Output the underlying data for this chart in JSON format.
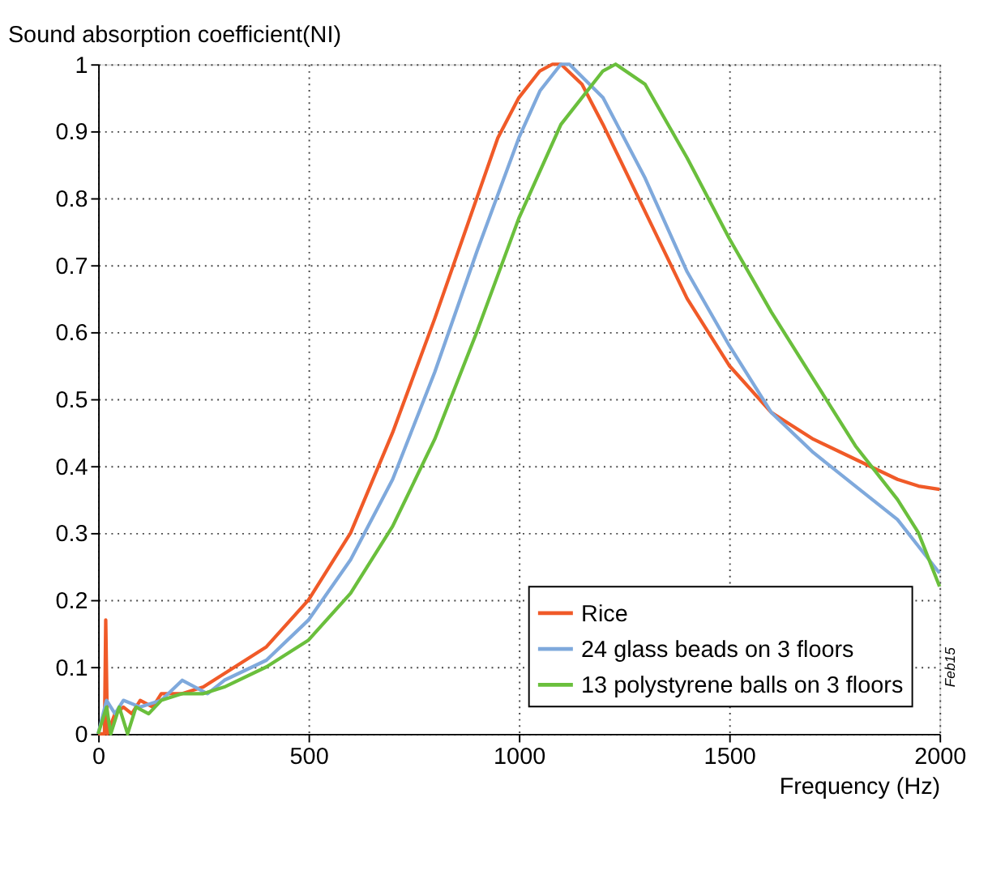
{
  "chart_data": {
    "type": "line",
    "title": "Sound absorption coefficient(NI)",
    "xlabel": "Frequency (Hz)",
    "xlim": [
      0,
      2000
    ],
    "xticks": [
      0,
      500,
      1000,
      1500,
      2000
    ],
    "ylim": [
      0,
      1
    ],
    "yticks": [
      0,
      0.1,
      0.2,
      0.3,
      0.4,
      0.5,
      0.6,
      0.7,
      0.8,
      0.9,
      1
    ],
    "grid": true,
    "legend": "bottom right",
    "annotations": [
      "Feb15"
    ],
    "series": [
      {
        "name": "Rice",
        "color": "#f05a28",
        "x": [
          0,
          15,
          18,
          22,
          40,
          60,
          80,
          100,
          130,
          150,
          200,
          250,
          300,
          400,
          500,
          600,
          700,
          800,
          900,
          950,
          1000,
          1050,
          1080,
          1100,
          1150,
          1200,
          1300,
          1400,
          1500,
          1600,
          1700,
          1800,
          1900,
          1950,
          2000
        ],
        "values": [
          0,
          0,
          0.17,
          0,
          0.03,
          0.04,
          0.03,
          0.05,
          0.04,
          0.06,
          0.06,
          0.07,
          0.09,
          0.13,
          0.2,
          0.3,
          0.45,
          0.62,
          0.8,
          0.89,
          0.95,
          0.99,
          1.0,
          1.0,
          0.97,
          0.91,
          0.78,
          0.65,
          0.55,
          0.48,
          0.44,
          0.41,
          0.38,
          0.37,
          0.365
        ]
      },
      {
        "name": "24 glass beads on 3 floors",
        "color": "#7fa9dc",
        "x": [
          0,
          20,
          40,
          60,
          100,
          150,
          200,
          230,
          260,
          300,
          400,
          500,
          600,
          700,
          800,
          900,
          1000,
          1050,
          1100,
          1120,
          1200,
          1300,
          1400,
          1500,
          1600,
          1700,
          1800,
          1900,
          1950,
          2000
        ],
        "values": [
          0,
          0.05,
          0.03,
          0.05,
          0.04,
          0.05,
          0.08,
          0.07,
          0.06,
          0.08,
          0.11,
          0.17,
          0.26,
          0.38,
          0.54,
          0.72,
          0.89,
          0.96,
          1.0,
          1.0,
          0.95,
          0.83,
          0.69,
          0.58,
          0.48,
          0.42,
          0.37,
          0.32,
          0.28,
          0.24
        ]
      },
      {
        "name": "13 polystyrene balls on 3 floors",
        "color": "#6abf3c",
        "x": [
          0,
          20,
          30,
          50,
          70,
          90,
          120,
          150,
          200,
          250,
          300,
          400,
          500,
          600,
          700,
          800,
          900,
          1000,
          1100,
          1200,
          1230,
          1300,
          1400,
          1500,
          1600,
          1700,
          1800,
          1900,
          1950,
          2000
        ],
        "values": [
          0,
          0.04,
          0,
          0.04,
          0,
          0.04,
          0.03,
          0.05,
          0.06,
          0.06,
          0.07,
          0.1,
          0.14,
          0.21,
          0.31,
          0.44,
          0.6,
          0.77,
          0.91,
          0.99,
          1.0,
          0.97,
          0.86,
          0.74,
          0.63,
          0.53,
          0.43,
          0.35,
          0.3,
          0.22
        ]
      }
    ]
  }
}
